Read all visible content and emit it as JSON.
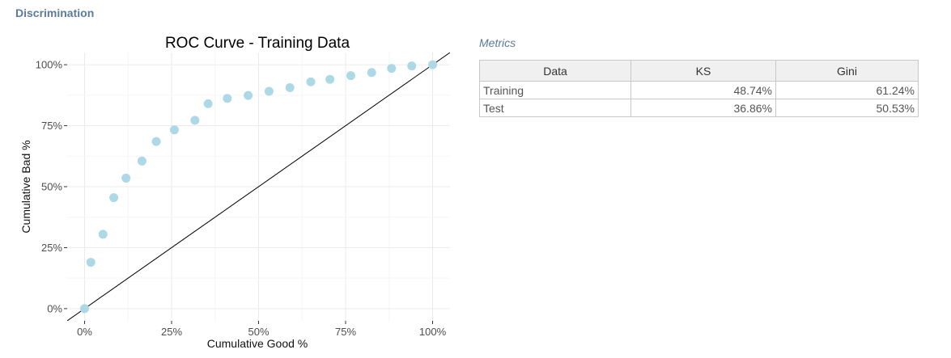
{
  "page": {
    "section_title": "Discrimination"
  },
  "metrics": {
    "title": "Metrics",
    "headers": [
      "Data",
      "KS",
      "Gini"
    ],
    "rows": [
      {
        "data": "Training",
        "ks": "48.74%",
        "gini": "61.24%"
      },
      {
        "data": "Test",
        "ks": "36.86%",
        "gini": "50.53%"
      }
    ]
  },
  "chart_data": {
    "type": "scatter",
    "title": "ROC Curve - Training Data",
    "xlabel": "Cumulative Good %",
    "ylabel": "Cumulative Bad %",
    "xlim": [
      -0.05,
      1.05
    ],
    "ylim": [
      -0.05,
      1.05
    ],
    "xticks": [
      0,
      0.25,
      0.5,
      0.75,
      1.0
    ],
    "xtick_labels": [
      "0%",
      "25%",
      "50%",
      "75%",
      "100%"
    ],
    "yticks": [
      0,
      0.25,
      0.5,
      0.75,
      1.0
    ],
    "ytick_labels": [
      "0%",
      "25%",
      "50%",
      "75%",
      "100%"
    ],
    "grid": true,
    "reference_line": true,
    "point_color": "#add8e6",
    "points": [
      {
        "x": 0.0,
        "y": 0.0
      },
      {
        "x": 0.018,
        "y": 0.19
      },
      {
        "x": 0.053,
        "y": 0.305
      },
      {
        "x": 0.084,
        "y": 0.455
      },
      {
        "x": 0.119,
        "y": 0.535
      },
      {
        "x": 0.165,
        "y": 0.605
      },
      {
        "x": 0.206,
        "y": 0.685
      },
      {
        "x": 0.258,
        "y": 0.733
      },
      {
        "x": 0.317,
        "y": 0.772
      },
      {
        "x": 0.355,
        "y": 0.84
      },
      {
        "x": 0.41,
        "y": 0.862
      },
      {
        "x": 0.47,
        "y": 0.874
      },
      {
        "x": 0.53,
        "y": 0.891
      },
      {
        "x": 0.59,
        "y": 0.906
      },
      {
        "x": 0.65,
        "y": 0.93
      },
      {
        "x": 0.705,
        "y": 0.94
      },
      {
        "x": 0.765,
        "y": 0.955
      },
      {
        "x": 0.825,
        "y": 0.968
      },
      {
        "x": 0.882,
        "y": 0.985
      },
      {
        "x": 0.94,
        "y": 0.995
      },
      {
        "x": 1.0,
        "y": 1.0
      }
    ]
  }
}
